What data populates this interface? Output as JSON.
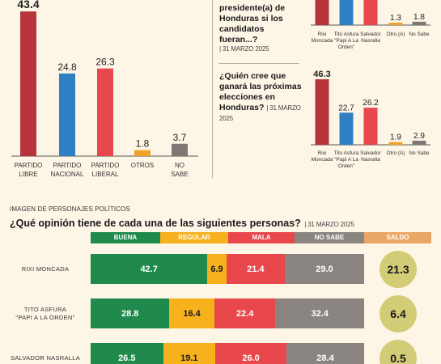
{
  "chart_left": {
    "type": "bar",
    "categories": [
      {
        "line1": "PARTIDO",
        "line2": "LIBRE"
      },
      {
        "line1": "PARTIDO",
        "line2": "NACIONAL"
      },
      {
        "line1": "PARTIDO",
        "line2": "LIBERAL"
      },
      {
        "line1": "OTROS",
        "line2": ""
      },
      {
        "line1": "NO",
        "line2": "SABE"
      }
    ],
    "values": [
      43.4,
      24.8,
      26.3,
      1.8,
      3.7
    ],
    "colors": [
      "#b8343b",
      "#2f7fc3",
      "#e8474b",
      "#f2a22b",
      "#7d7873"
    ]
  },
  "question1": {
    "title_lines": [
      "presidente(a) de",
      "Honduras si los",
      "candidatos fueran...?"
    ],
    "date": "31 MARZO 2025"
  },
  "question2": {
    "title_lines": [
      "¿Quién cree que",
      "ganará las próximas",
      "elecciones en",
      "Honduras?"
    ],
    "date_a": "31 MARZO",
    "date_b": "2025"
  },
  "chart_right_top": {
    "type": "bar",
    "categories": [
      {
        "line1": "Rixi",
        "line2": "Moncada",
        "line3": ""
      },
      {
        "line1": "Tito Asfura",
        "line2": "\"Papi A La",
        "line3": "Orden\""
      },
      {
        "line1": "Salvador",
        "line2": "Nasralla",
        "line3": ""
      },
      {
        "line1": "Otro (A)",
        "line2": "",
        "line3": ""
      },
      {
        "line1": "No Sabe",
        "line2": "",
        "line3": ""
      }
    ],
    "values": [
      null,
      null,
      null,
      1.3,
      1.8
    ],
    "value_labels": [
      "",
      "",
      "",
      "1.3",
      "1.8"
    ]
  },
  "chart_right_bottom": {
    "type": "bar",
    "categories": [
      {
        "line1": "Rixi",
        "line2": "Moncada",
        "line3": ""
      },
      {
        "line1": "Tito Asfura",
        "line2": "\"Papi A La",
        "line3": "Orden\""
      },
      {
        "line1": "Salvador",
        "line2": "Nasralla",
        "line3": ""
      },
      {
        "line1": "Otro (A)",
        "line2": "",
        "line3": ""
      },
      {
        "line1": "No Sabe",
        "line2": "",
        "line3": ""
      }
    ],
    "values": [
      46.3,
      22.7,
      26.2,
      1.9,
      2.9
    ],
    "colors": [
      "#b8343b",
      "#2f7fc3",
      "#e8474b",
      "#f2a22b",
      "#7d7873"
    ]
  },
  "section": {
    "label": "IMAGEN DE PERSONAJES POLÍTICOS",
    "question": "¿Qué opinión tiene de cada una de las siguientes personas?",
    "date": "31 MARZO 2025"
  },
  "chart_data": {
    "type": "bar",
    "stacked": true,
    "headers": [
      "BUENA",
      "REGULAR",
      "MALA",
      "NO SABE",
      "SALDO"
    ],
    "header_colors": [
      "#1f8a4c",
      "#f6b11d",
      "#e8474b",
      "#8a8580",
      "#e9a765"
    ],
    "rows": [
      {
        "lines": [
          "RIXI MONCADA"
        ],
        "values": [
          42.7,
          6.9,
          21.4,
          29.0
        ],
        "labels": [
          "42.7",
          "6.9",
          "21.4",
          "29.0"
        ],
        "saldo": "21.3"
      },
      {
        "lines": [
          "TITO ASFURA",
          "\"PAPI A LA ORDEN\""
        ],
        "values": [
          28.8,
          16.4,
          22.4,
          32.4
        ],
        "labels": [
          "28.8",
          "16.4",
          "22.4",
          "32.4"
        ],
        "saldo": "6.4"
      },
      {
        "lines": [
          "SALVADOR NASRALLA"
        ],
        "values": [
          26.5,
          19.1,
          26.0,
          28.4
        ],
        "labels": [
          "26.5",
          "19.1",
          "26.0",
          "28.4"
        ],
        "saldo": "0.5"
      }
    ]
  }
}
